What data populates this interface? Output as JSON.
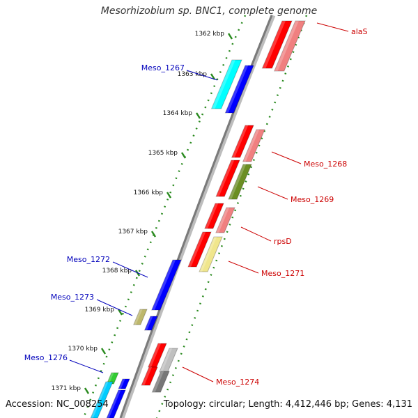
{
  "title": "Mesorhizobium sp. BNC1, complete genome",
  "accession": "Accession: NC_008254",
  "topology": "Topology: circular; Length: 4,412,446 bp; Genes: 4,131",
  "colors": {
    "backbone": "#7a7a7a",
    "tick": "#2a8a1f",
    "forward_label": "#cc0000",
    "reverse_label": "#0000bb"
  },
  "ticks": [
    {
      "label": "1362 kbp"
    },
    {
      "label": "1363 kbp"
    },
    {
      "label": "1364 kbp"
    },
    {
      "label": "1365 kbp"
    },
    {
      "label": "1366 kbp"
    },
    {
      "label": "1367 kbp"
    },
    {
      "label": "1368 kbp"
    },
    {
      "label": "1369 kbp"
    },
    {
      "label": "1370 kbp"
    },
    {
      "label": "1371 kbp"
    }
  ],
  "forward_genes": [
    {
      "name": "alaS",
      "color": "#ff0000",
      "color2": "#f08080"
    },
    {
      "name": "Meso_1268",
      "color": "#ff0000",
      "color2": "#f08080"
    },
    {
      "name": "Meso_1269",
      "color": "#ff0000",
      "color2": "#6b8e23"
    },
    {
      "name": "rpsD",
      "color": "#ff0000",
      "color2": "#f08080"
    },
    {
      "name": "Meso_1271",
      "color": "#ff0000",
      "color2": "#f0e68c"
    },
    {
      "name": "Meso_1274",
      "color": "#ff0000",
      "color2": "#c0c0c0"
    }
  ],
  "reverse_genes": [
    {
      "name": "Meso_1267",
      "color": "#0000ff",
      "color2": "#00ffff"
    },
    {
      "name": "Meso_1272",
      "color": "#0000ff",
      "color2": ""
    },
    {
      "name": "Meso_1273",
      "color": "#0000ff",
      "color2": "#bdb76b"
    },
    {
      "name": "Meso_1276",
      "color": "#0000ff",
      "color2": "#32cd32"
    }
  ]
}
